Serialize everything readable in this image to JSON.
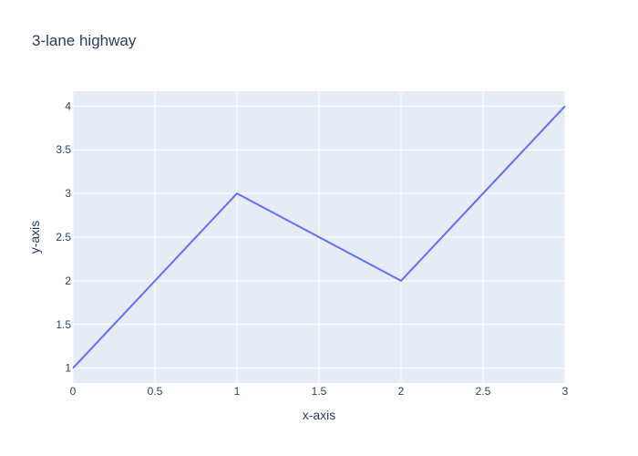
{
  "chart_data": {
    "type": "line",
    "title": "3-lane highway",
    "xlabel": "x-axis",
    "ylabel": "y-axis",
    "xlim": [
      0,
      3
    ],
    "ylim": [
      0.83,
      4.17
    ],
    "x_ticks": [
      "0",
      "0.5",
      "1",
      "1.5",
      "2",
      "2.5",
      "3"
    ],
    "y_ticks": [
      "1",
      "1.5",
      "2",
      "2.5",
      "3",
      "3.5",
      "4"
    ],
    "grid": true,
    "series": [
      {
        "x": [
          0,
          1,
          2,
          3
        ],
        "y": [
          1,
          3,
          2,
          4
        ],
        "color": "#636efa"
      }
    ],
    "colors": {
      "plot_bg": "#e5ecf6",
      "grid": "#ffffff",
      "text": "#2a3f5f",
      "line": "#636efa"
    }
  }
}
